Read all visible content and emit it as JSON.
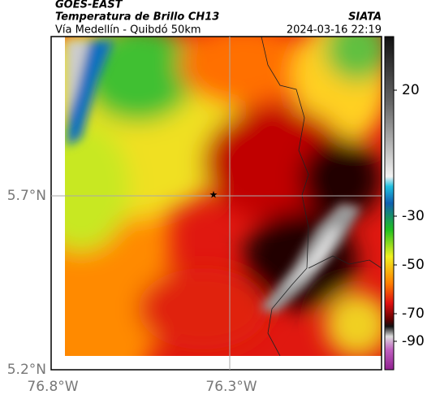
{
  "header": {
    "satellite": "GOES-EAST",
    "product": "Temperatura de Brillo CH13",
    "source": "SIATA",
    "region": "Vía Medellín - Quibdó 50km",
    "datetime": "2024-03-16 22:19"
  },
  "axes": {
    "lat_labels": [
      "5.7°N",
      "5.2°N"
    ],
    "lon_labels": [
      "76.8°W",
      "76.3°W"
    ]
  },
  "colorbar": {
    "ticks": [
      20,
      -30,
      -50,
      -70,
      -90
    ]
  }
}
